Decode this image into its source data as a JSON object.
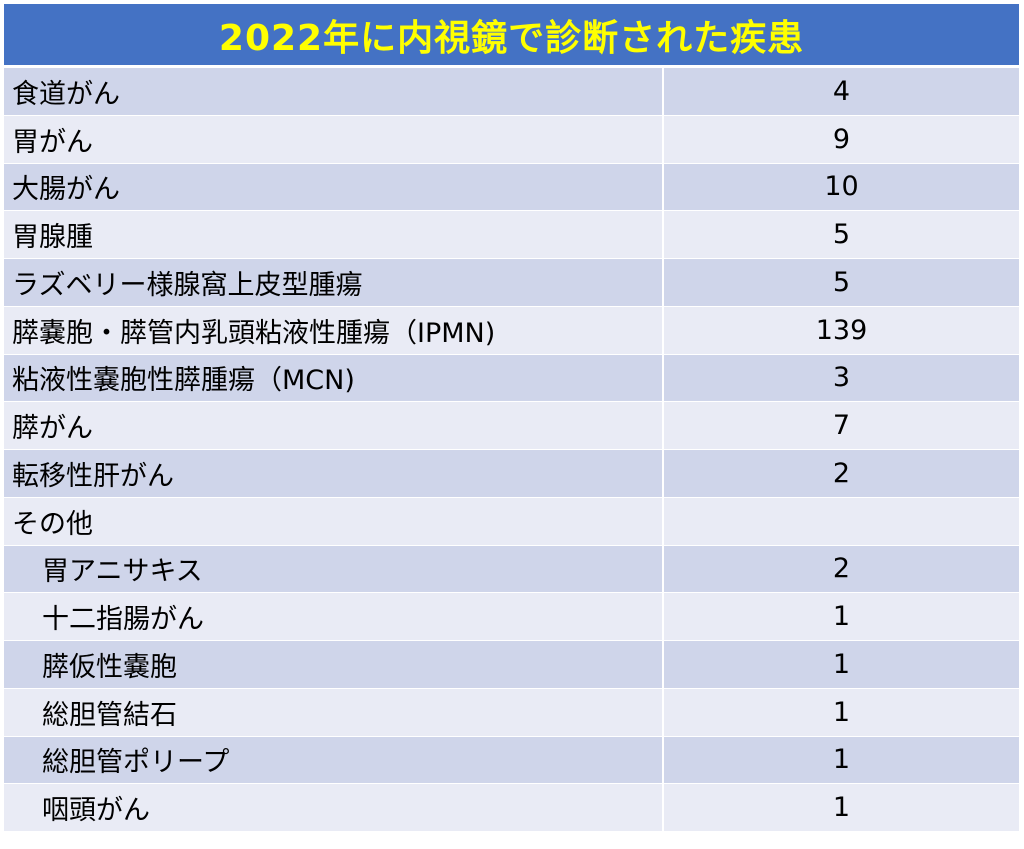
{
  "title": "2022年に内視鏡で診断された疾患",
  "colors": {
    "header_bg": "#4472c4",
    "header_text": "#ffff00",
    "row_odd": "#cfd5ea",
    "row_even": "#e9ebf5"
  },
  "rows": [
    {
      "name": "食道がん",
      "value": "4",
      "indent": false
    },
    {
      "name": "胃がん",
      "value": "9",
      "indent": false
    },
    {
      "name": "大腸がん",
      "value": "10",
      "indent": false
    },
    {
      "name": "胃腺腫",
      "value": "5",
      "indent": false
    },
    {
      "name": "ラズベリー様腺窩上皮型腫瘍",
      "value": "5",
      "indent": false
    },
    {
      "name": "膵嚢胞・膵管内乳頭粘液性腫瘍（IPMN)",
      "value": "139",
      "indent": false
    },
    {
      "name": "粘液性嚢胞性膵腫瘍（MCN)",
      "value": "3",
      "indent": false
    },
    {
      "name": "膵がん",
      "value": "7",
      "indent": false
    },
    {
      "name": "転移性肝がん",
      "value": "2",
      "indent": false
    },
    {
      "name": "その他",
      "value": "",
      "indent": false
    },
    {
      "name": "胃アニサキス",
      "value": "2",
      "indent": true
    },
    {
      "name": "十二指腸がん",
      "value": "1",
      "indent": true
    },
    {
      "name": "膵仮性嚢胞",
      "value": "1",
      "indent": true
    },
    {
      "name": "総胆管結石",
      "value": "1",
      "indent": true
    },
    {
      "name": "総胆管ポリープ",
      "value": "1",
      "indent": true
    },
    {
      "name": "咽頭がん",
      "value": "1",
      "indent": true
    }
  ]
}
